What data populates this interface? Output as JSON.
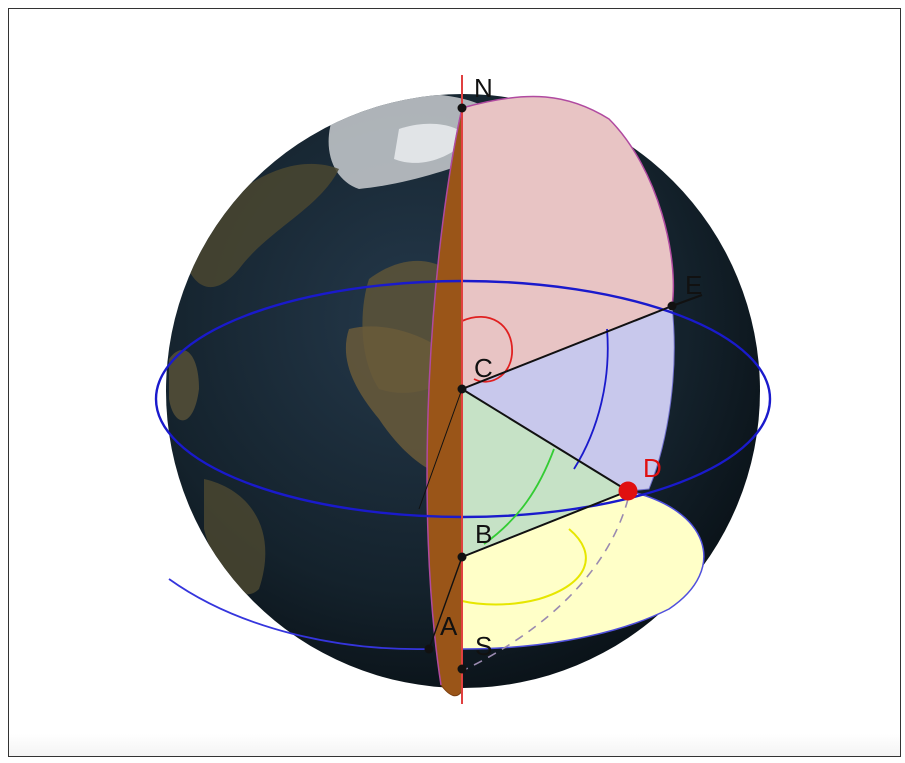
{
  "labels": {
    "north": "N",
    "south": "S",
    "center": "C",
    "point_a": "A",
    "point_b": "B",
    "point_d": "D",
    "point_e": "E"
  },
  "colors": {
    "axis": "#e04040",
    "meridian_face": "#e8c4c4",
    "equator_band": "#c8c8ec",
    "latitude_wedge": "#c6e2c6",
    "lower_disc": "#ffffc8",
    "meridian_section": "#9a5518",
    "equator_line": "#1a1acc",
    "latitude_arc": "#33cc33",
    "small_arc": "#e6e600",
    "point_d": "#e01010",
    "globe_ocean": "#14222c",
    "globe_land": "#4a4630"
  }
}
